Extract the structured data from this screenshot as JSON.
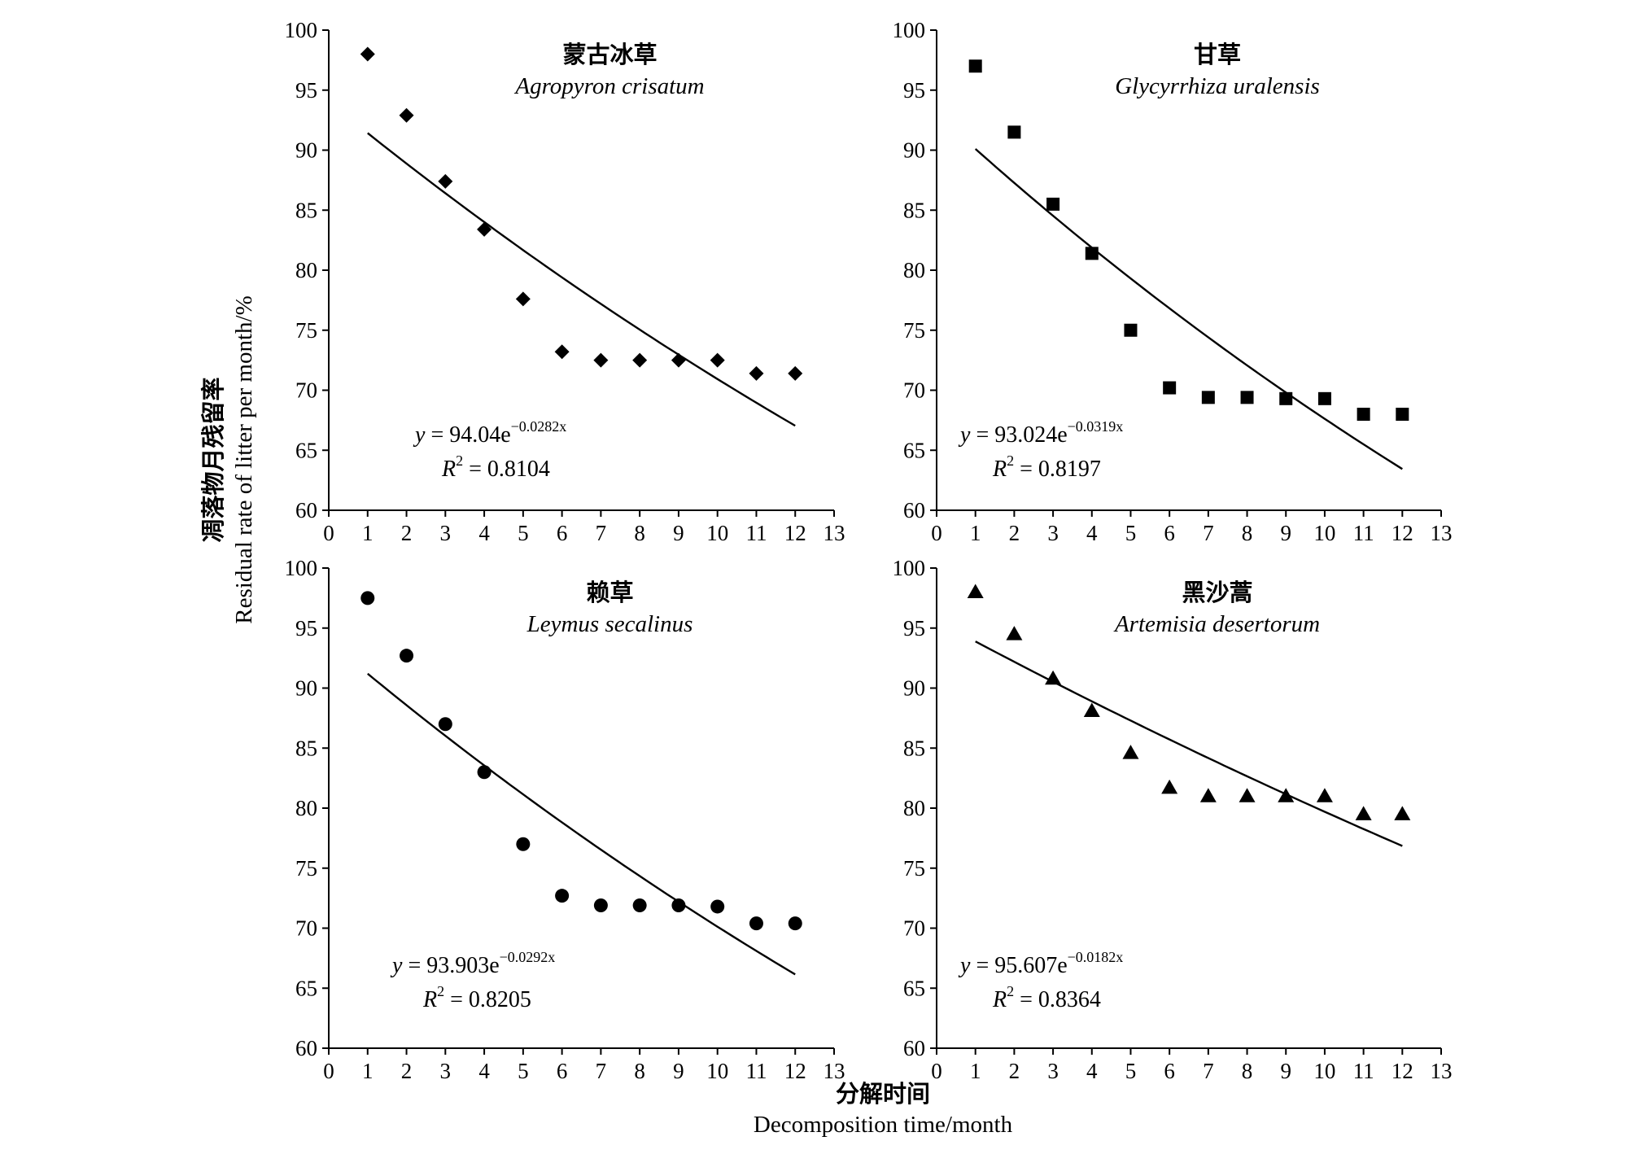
{
  "figure": {
    "ylabel_cn": "凋落物月残留率",
    "ylabel_en": "Residual rate of litter per month/%",
    "xlabel_cn": "分解时间",
    "xlabel_en": "Decomposition time/month"
  },
  "chart_data": [
    {
      "type": "scatter",
      "title": "蒙古冰草",
      "subtitle": "Agropyron crisatum",
      "marker": "diamond",
      "xlim": [
        0,
        13
      ],
      "ylim": [
        60,
        100
      ],
      "xticks": [
        0,
        1,
        2,
        3,
        4,
        5,
        6,
        7,
        8,
        9,
        10,
        11,
        12,
        13
      ],
      "yticks": [
        60,
        65,
        70,
        75,
        80,
        85,
        90,
        95,
        100
      ],
      "x": [
        1,
        2,
        3,
        4,
        5,
        6,
        7,
        8,
        9,
        10,
        11,
        12
      ],
      "y": [
        98.0,
        92.9,
        87.4,
        83.4,
        77.6,
        73.2,
        72.5,
        72.5,
        72.5,
        72.5,
        71.4,
        71.4
      ],
      "fit": {
        "a": 94.04,
        "b": -0.0282,
        "x_start": 1,
        "x_end": 12
      },
      "equation": {
        "y_prefix": "y",
        "body": " = 94.04e",
        "exponent": "−0.0282x",
        "r2_prefix": "R",
        "r2_body": " = 0.8104"
      }
    },
    {
      "type": "scatter",
      "title": "甘草",
      "subtitle": "Glycyrrhiza uralensis",
      "marker": "square",
      "xlim": [
        0,
        13
      ],
      "ylim": [
        60,
        100
      ],
      "xticks": [
        0,
        1,
        2,
        3,
        4,
        5,
        6,
        7,
        8,
        9,
        10,
        11,
        12,
        13
      ],
      "yticks": [
        60,
        65,
        70,
        75,
        80,
        85,
        90,
        95,
        100
      ],
      "x": [
        1,
        2,
        3,
        4,
        5,
        6,
        7,
        8,
        9,
        10,
        11,
        12
      ],
      "y": [
        97.0,
        91.5,
        85.5,
        81.4,
        75.0,
        70.2,
        69.4,
        69.4,
        69.3,
        69.3,
        68.0,
        68.0
      ],
      "fit": {
        "a": 93.024,
        "b": -0.0319,
        "x_start": 1,
        "x_end": 12
      },
      "equation": {
        "y_prefix": "y",
        "body": " = 93.024e",
        "exponent": "−0.0319x",
        "r2_prefix": "R",
        "r2_body": " = 0.8197"
      }
    },
    {
      "type": "scatter",
      "title": "赖草",
      "subtitle": "Leymus secalinus",
      "marker": "circle",
      "xlim": [
        0,
        13
      ],
      "ylim": [
        60,
        100
      ],
      "xticks": [
        0,
        1,
        2,
        3,
        4,
        5,
        6,
        7,
        8,
        9,
        10,
        11,
        12,
        13
      ],
      "yticks": [
        60,
        65,
        70,
        75,
        80,
        85,
        90,
        95,
        100
      ],
      "x": [
        1,
        2,
        3,
        4,
        5,
        6,
        7,
        8,
        9,
        10,
        11,
        12
      ],
      "y": [
        97.5,
        92.7,
        87.0,
        83.0,
        77.0,
        72.7,
        71.9,
        71.9,
        71.9,
        71.8,
        70.4,
        70.4
      ],
      "fit": {
        "a": 93.903,
        "b": -0.0292,
        "x_start": 1,
        "x_end": 12
      },
      "equation": {
        "y_prefix": "y",
        "body": " = 93.903e",
        "exponent": "−0.0292x",
        "r2_prefix": "R",
        "r2_body": " = 0.8205"
      }
    },
    {
      "type": "scatter",
      "title": "黑沙蒿",
      "subtitle": "Artemisia desertorum",
      "marker": "triangle",
      "xlim": [
        0,
        13
      ],
      "ylim": [
        60,
        100
      ],
      "xticks": [
        0,
        1,
        2,
        3,
        4,
        5,
        6,
        7,
        8,
        9,
        10,
        11,
        12,
        13
      ],
      "yticks": [
        60,
        65,
        70,
        75,
        80,
        85,
        90,
        95,
        100
      ],
      "x": [
        1,
        2,
        3,
        4,
        5,
        6,
        7,
        8,
        9,
        10,
        11,
        12
      ],
      "y": [
        98.0,
        94.5,
        90.8,
        88.1,
        84.6,
        81.7,
        81.0,
        81.0,
        81.0,
        81.0,
        79.5,
        79.5
      ],
      "fit": {
        "a": 95.607,
        "b": -0.0182,
        "x_start": 1,
        "x_end": 12
      },
      "equation": {
        "y_prefix": "y",
        "body": " = 95.607e",
        "exponent": "−0.0182x",
        "r2_prefix": "R",
        "r2_body": " = 0.8364"
      }
    }
  ]
}
